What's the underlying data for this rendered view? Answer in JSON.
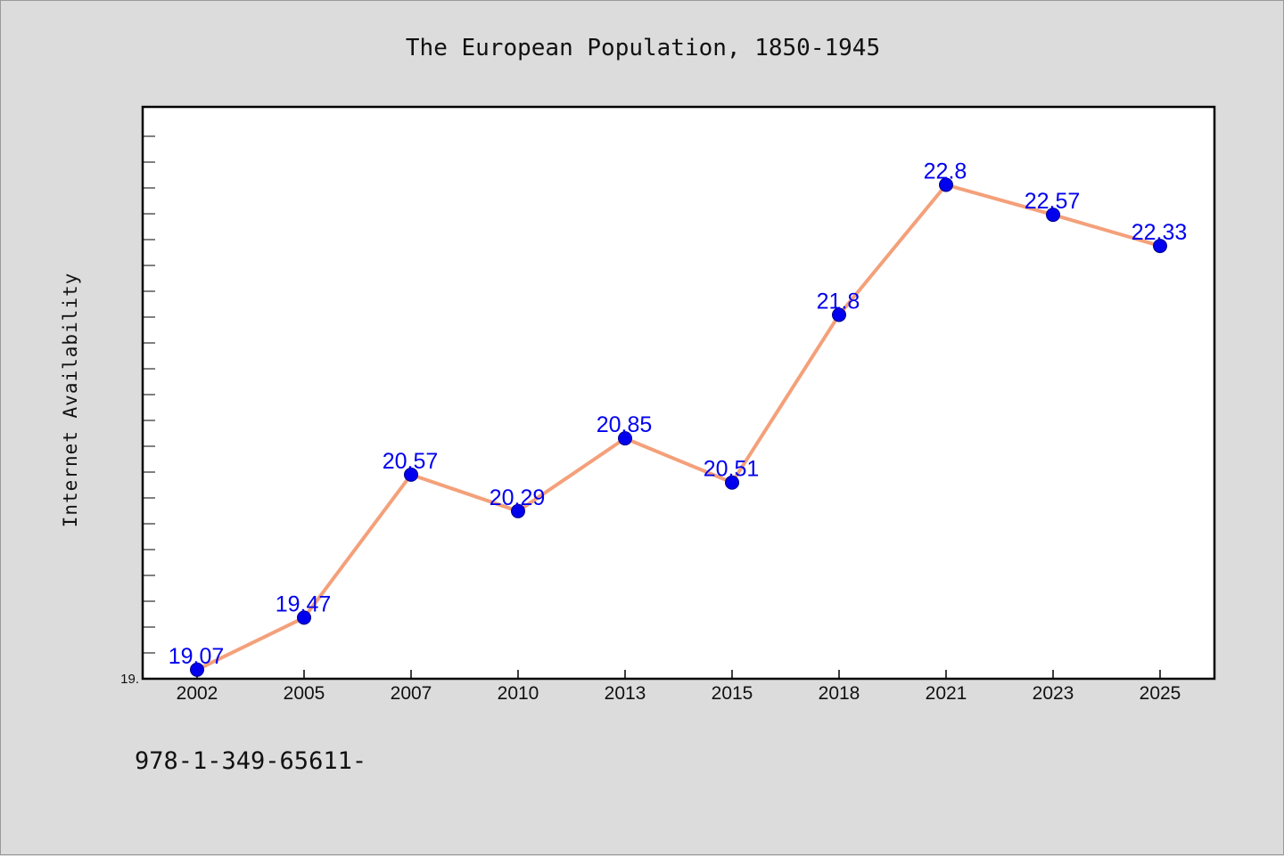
{
  "chart_data": {
    "type": "line",
    "title": "The European Population, 1850-1945",
    "xlabel": "",
    "ylabel": "Internet Availability",
    "categories": [
      "2002",
      "2005",
      "2007",
      "2010",
      "2013",
      "2015",
      "2018",
      "2021",
      "2023",
      "2025"
    ],
    "series": [
      {
        "values": [
          19.07,
          19.47,
          20.57,
          20.29,
          20.85,
          20.51,
          21.8,
          22.8,
          22.57,
          22.33
        ],
        "labels": [
          "19.07",
          "19.47",
          "20.57",
          "20.29",
          "20.85",
          "20.51",
          "21.8",
          "22.8",
          "22.57",
          "22.33"
        ]
      }
    ],
    "ylim": [
      19.0,
      23.4
    ],
    "ytick_labels": [
      "19."
    ],
    "grid": false,
    "legend": "none",
    "colors": {
      "line": "#f4a07a",
      "marker": "#0000ee",
      "data_label": "#0000ee",
      "background": "#dcdcdc",
      "plot_area": "#ffffff"
    }
  },
  "footnote": "978-1-349-65611-"
}
